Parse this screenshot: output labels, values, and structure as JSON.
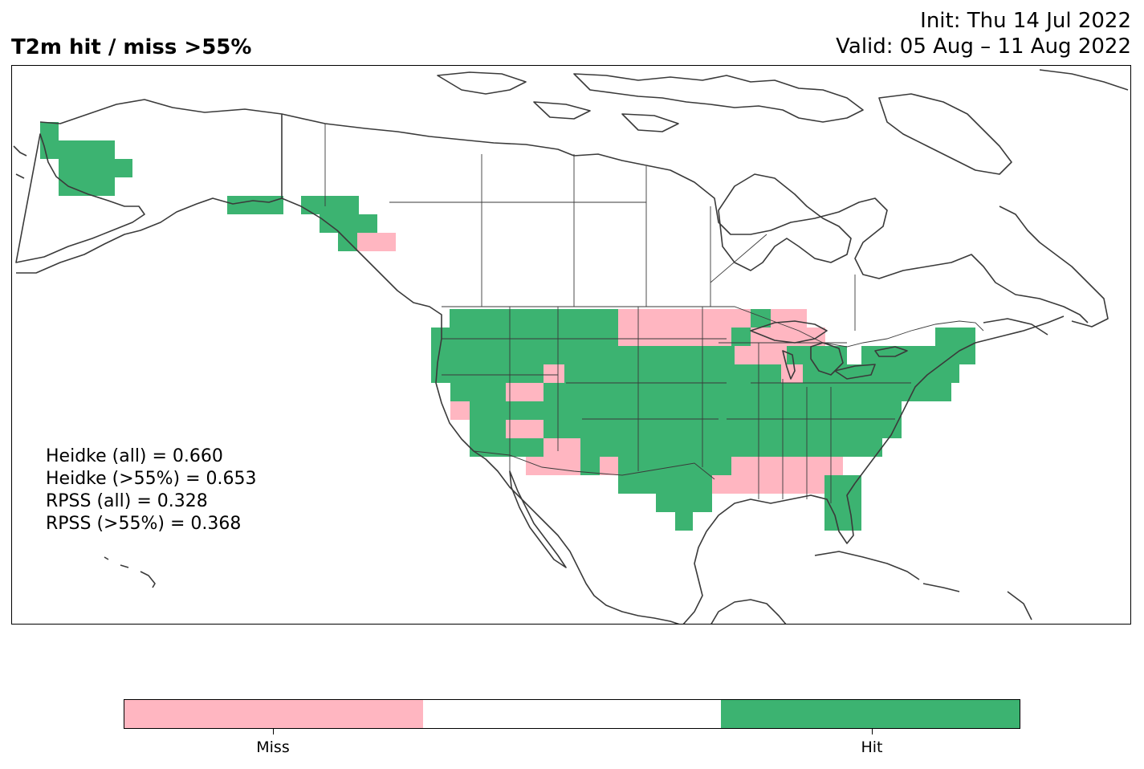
{
  "title": {
    "left": "T2m hit / miss  >55%",
    "init": "Init: Thu 14 Jul 2022",
    "valid": "Valid: 05 Aug – 11 Aug 2022"
  },
  "stats": [
    "Heidke (all) = 0.660",
    "Heidke (>55%) = 0.653",
    "RPSS (all) = 0.328",
    "RPSS (>55%) = 0.368"
  ],
  "legend": {
    "segments": [
      {
        "label": "Miss",
        "color": "#ffb6c1"
      },
      {
        "label": "",
        "color": "#ffffff"
      },
      {
        "label": "Hit",
        "color": "#3cb371"
      }
    ]
  },
  "colors": {
    "hit": "#3cb371",
    "miss": "#ffb6c1",
    "coast": "#3a3a3a"
  }
}
